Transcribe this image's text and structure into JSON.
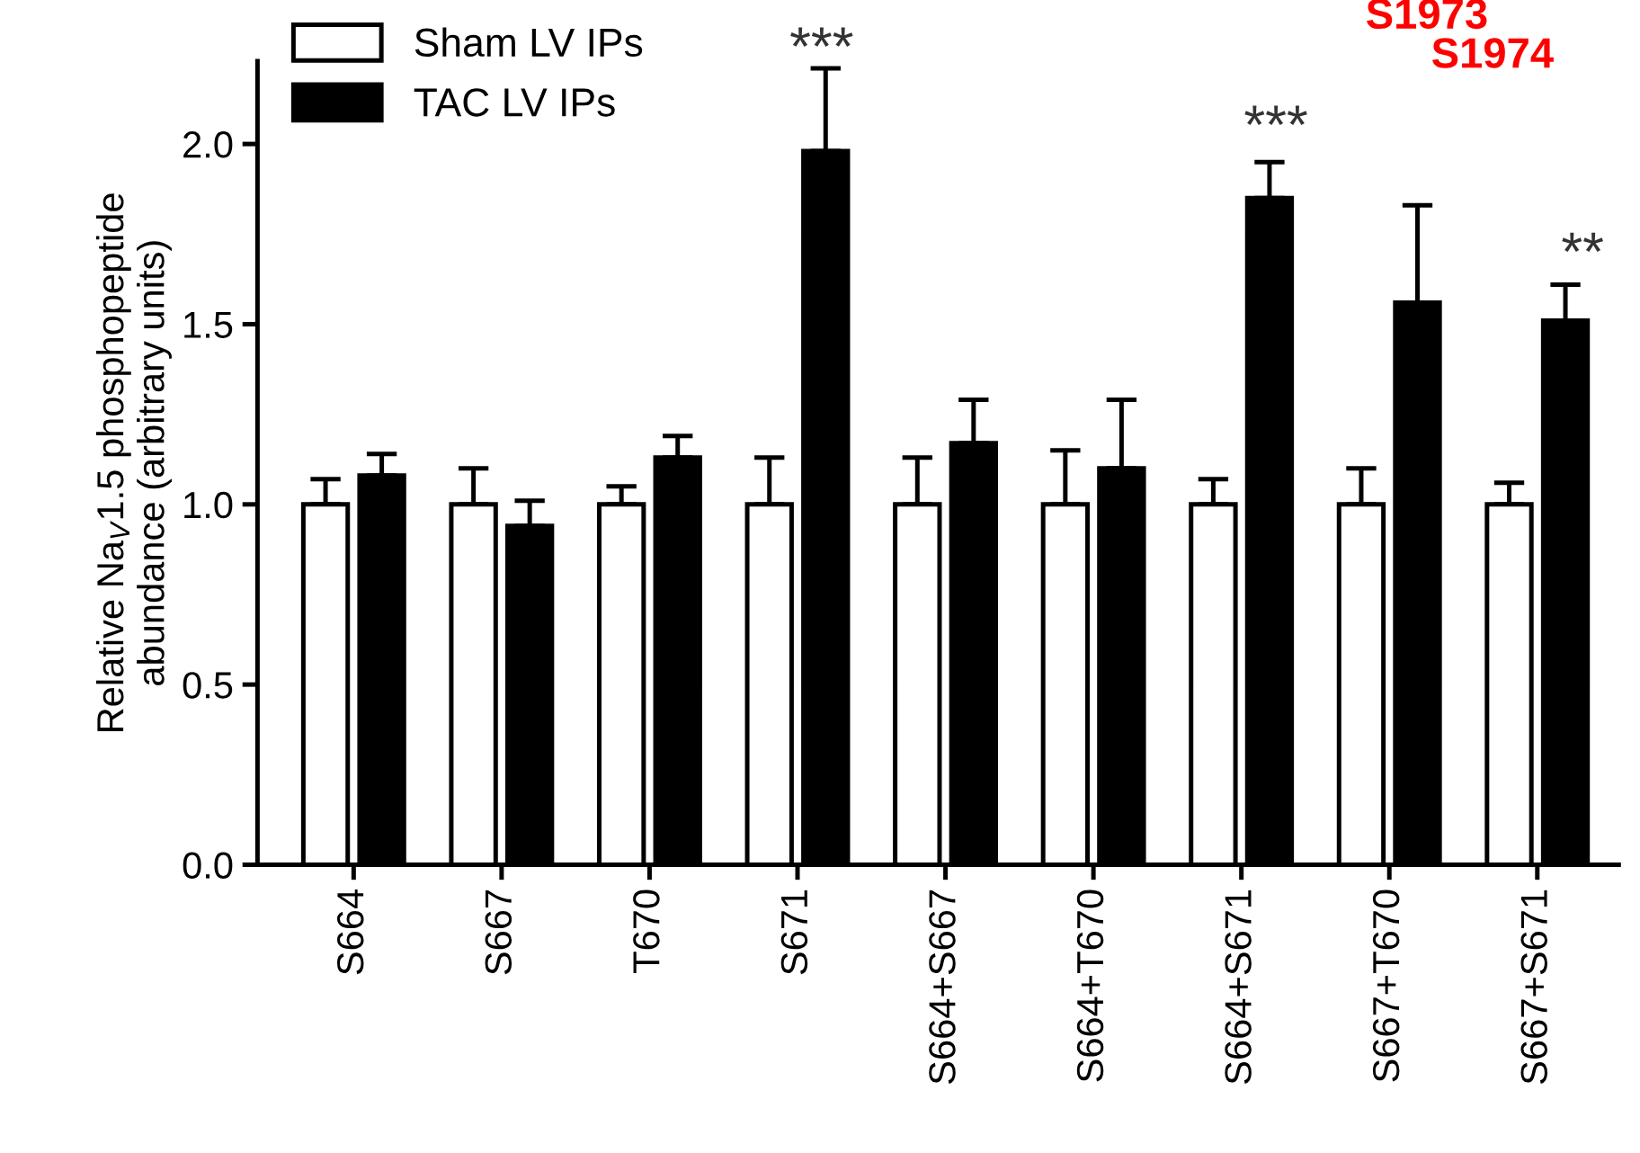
{
  "chart_data": {
    "type": "bar",
    "ylabel": "Relative Na$_{V}$1.5 phosphopeptide\nabundance (arbitrary units)",
    "categories": [
      "S664",
      "S667",
      "T670",
      "S671",
      "S664+S667",
      "S664+T670",
      "S664+S671",
      "S667+T670",
      "S667+S671"
    ],
    "series": [
      {
        "name": "Sham LV IPs",
        "color": "#ffffff",
        "values": [
          1.0,
          1.0,
          1.0,
          1.0,
          1.0,
          1.0,
          1.0,
          1.0,
          1.0
        ],
        "errors": [
          [
            1.0,
            1.07
          ],
          [
            1.0,
            1.1
          ],
          [
            1.0,
            1.05
          ],
          [
            1.0,
            1.13
          ],
          [
            1.0,
            1.13
          ],
          [
            1.0,
            1.15
          ],
          [
            1.0,
            1.07
          ],
          [
            1.0,
            1.1
          ],
          [
            1.0,
            1.06
          ]
        ]
      },
      {
        "name": "TAC LV IPs",
        "color": "#000000",
        "values": [
          1.08,
          0.94,
          1.13,
          1.98,
          1.17,
          1.1,
          1.85,
          1.56,
          1.51
        ],
        "errors": [
          [
            1.08,
            1.14
          ],
          [
            0.94,
            1.01
          ],
          [
            1.13,
            1.19
          ],
          [
            1.98,
            2.21
          ],
          [
            1.17,
            1.29
          ],
          [
            1.1,
            1.29
          ],
          [
            1.85,
            1.95
          ],
          [
            1.56,
            1.83
          ],
          [
            1.51,
            1.61
          ]
        ]
      }
    ],
    "ylim": [
      0,
      2.23
    ],
    "yticks": [
      {
        "value": 0,
        "label": "0.0"
      },
      0.5,
      {
        "value": 1,
        "label": "1.0"
      },
      1.5,
      {
        "value": 2,
        "label": "2.0"
      }
    ],
    "grid": false,
    "legend": "top left",
    "annotations": [
      "***",
      "***",
      "**",
      "S1973",
      "S1974"
    ]
  }
}
